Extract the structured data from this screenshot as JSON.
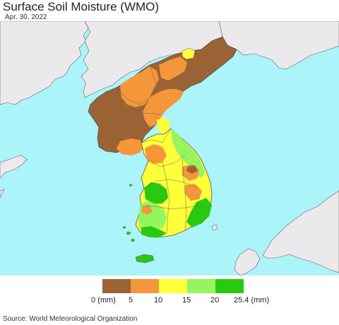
{
  "header": {
    "title": "Surface Soil Moisture (WMO)",
    "date": "Apr. 30, 2022"
  },
  "legend": {
    "items": [
      {
        "label": "0 (mm)",
        "color": "#9b6334"
      },
      {
        "label": "5",
        "color": "#f5963b"
      },
      {
        "label": "10",
        "color": "#ffff3a"
      },
      {
        "label": "15",
        "color": "#95f55f"
      },
      {
        "label": "20",
        "color": "#29c910"
      },
      {
        "label": "25.4 (mm)",
        "color": null
      }
    ]
  },
  "colors": {
    "sea": "#aaf4fa",
    "land_nodata": "#ece9ec",
    "border": "#555555"
  },
  "footer": {
    "source": "Source: World Meteorological Organization"
  }
}
